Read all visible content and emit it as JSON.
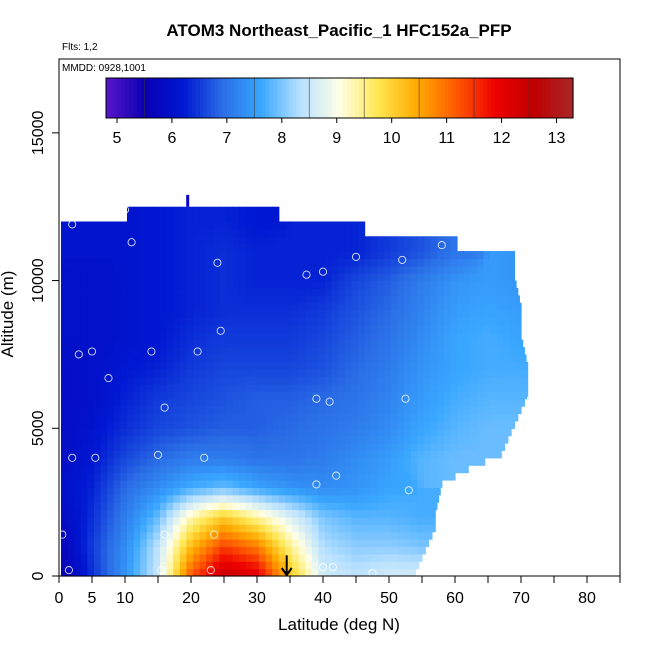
{
  "chart_data": {
    "type": "heatmap",
    "title": "ATOM3 Northeast_Pacific_1 HFC152a_PFP",
    "flights_label": "Flts: 1,2",
    "dates_label": "MMDD: 0928,1001",
    "xlabel": "Latitude (deg N)",
    "ylabel": "Altitude (m)",
    "xlim": [
      0,
      85
    ],
    "ylim": [
      0,
      17500
    ],
    "x_ticks": [
      0,
      5,
      10,
      20,
      30,
      40,
      50,
      60,
      70,
      80
    ],
    "x_minor_ticks": [
      15,
      25,
      35,
      45,
      55,
      65,
      75,
      85
    ],
    "y_ticks": [
      0,
      5000,
      10000,
      15000
    ],
    "colorbar": {
      "range": [
        4.8,
        13.3
      ],
      "ticks": [
        5,
        6,
        7,
        8,
        9,
        10,
        11,
        12,
        13
      ],
      "stops": [
        "#5a16c9",
        "#0a00b4",
        "#0018d2",
        "#2a6ee6",
        "#39a7ff",
        "#b9e1ff",
        "#ffffe6",
        "#ffe650",
        "#ffaa00",
        "#ff5a00",
        "#ee0000",
        "#c00000",
        "#a82828"
      ]
    },
    "field": {
      "lat_grid": [
        0,
        5,
        10,
        15,
        20,
        25,
        30,
        35,
        40,
        45,
        50,
        55,
        60,
        65,
        70,
        75
      ],
      "alt_grid": [
        0,
        1000,
        2000,
        3000,
        4000,
        5000,
        6000,
        7000,
        8000,
        9000,
        10000,
        11000,
        12000
      ],
      "values": [
        [
          5.4,
          6.4,
          7.4,
          8.5,
          11.2,
          12.5,
          12.1,
          10.2,
          8.6,
          8.4,
          8.6,
          8.6,
          null,
          null,
          null,
          null
        ],
        [
          5.6,
          6.5,
          7.3,
          8.4,
          10.3,
          11.4,
          10.9,
          9.5,
          8.3,
          8.1,
          8.1,
          8.0,
          null,
          null,
          null,
          null
        ],
        [
          5.8,
          6.4,
          7.1,
          7.9,
          9.3,
          10.1,
          9.4,
          8.7,
          8.0,
          7.8,
          7.8,
          7.7,
          null,
          null,
          null,
          null
        ],
        [
          6.0,
          6.3,
          6.9,
          7.3,
          7.7,
          7.9,
          7.6,
          7.4,
          7.3,
          7.4,
          7.6,
          null,
          null,
          null,
          null,
          null
        ],
        [
          5.9,
          6.2,
          6.6,
          6.9,
          7.1,
          7.1,
          7.0,
          7.0,
          7.1,
          7.3,
          7.5,
          7.8,
          7.9,
          7.9,
          null,
          null
        ],
        [
          5.9,
          6.1,
          6.4,
          6.6,
          6.7,
          6.8,
          6.8,
          6.9,
          7.0,
          7.1,
          7.3,
          7.6,
          7.8,
          7.9,
          7.9,
          null
        ],
        [
          5.9,
          6.0,
          6.3,
          6.5,
          6.6,
          6.7,
          6.8,
          6.8,
          6.9,
          7.0,
          7.2,
          7.5,
          7.7,
          7.8,
          7.8,
          null
        ],
        [
          5.9,
          6.0,
          6.2,
          6.3,
          6.5,
          6.6,
          6.6,
          6.6,
          6.7,
          6.9,
          7.1,
          7.4,
          7.6,
          7.7,
          7.7,
          null
        ],
        [
          6.0,
          6.0,
          6.1,
          6.2,
          6.4,
          6.5,
          6.5,
          6.5,
          6.6,
          6.8,
          7.0,
          7.3,
          7.6,
          7.7,
          7.6,
          null
        ],
        [
          6.0,
          6.0,
          6.1,
          6.2,
          6.3,
          6.4,
          6.4,
          6.4,
          6.5,
          6.7,
          6.9,
          7.2,
          7.5,
          7.6,
          7.5,
          null
        ],
        [
          6.0,
          6.0,
          6.1,
          6.2,
          6.3,
          6.4,
          6.3,
          6.3,
          6.3,
          6.6,
          6.8,
          7.1,
          7.4,
          7.5,
          7.4,
          null
        ],
        [
          6.1,
          6.1,
          6.1,
          6.2,
          6.3,
          6.4,
          6.3,
          6.3,
          6.3,
          6.3,
          6.5,
          6.7,
          7.0,
          null,
          null,
          null
        ],
        [
          null,
          null,
          6.1,
          6.2,
          6.3,
          6.3,
          6.2,
          null,
          null,
          null,
          null,
          null,
          null,
          null,
          null,
          null
        ]
      ],
      "profiles": [
        {
          "lat_start": 0,
          "lat_end": 6,
          "alt_max": 12000
        },
        {
          "lat_start": 6,
          "lat_end": 10,
          "alt_max": 12000
        },
        {
          "lat_start": 10,
          "lat_end": 25,
          "alt_max": 12500
        },
        {
          "lat_start": 25,
          "lat_end": 33,
          "alt_max": 12500
        },
        {
          "lat_start": 33,
          "lat_end": 46,
          "alt_max": 11900
        },
        {
          "lat_start": 46,
          "lat_end": 53,
          "alt_max": 11500
        },
        {
          "lat_start": 53,
          "lat_end": 60,
          "alt_max": 11500
        },
        {
          "lat_start": 60,
          "lat_end": 68,
          "alt_max": 10900
        },
        {
          "lat_start": 68,
          "lat_end": 71,
          "alt_max": 10900
        }
      ],
      "right_edge": [
        {
          "alt": 0,
          "lat": 54
        },
        {
          "alt": 1000,
          "lat": 56
        },
        {
          "alt": 1500,
          "lat": 57
        },
        {
          "alt": 2000,
          "lat": 57
        },
        {
          "alt": 3000,
          "lat": 58
        },
        {
          "alt": 3500,
          "lat": 62
        },
        {
          "alt": 4000,
          "lat": 67
        },
        {
          "alt": 5000,
          "lat": 69
        },
        {
          "alt": 6000,
          "lat": 71
        },
        {
          "alt": 7000,
          "lat": 71
        },
        {
          "alt": 8000,
          "lat": 70
        },
        {
          "alt": 9000,
          "lat": 70
        },
        {
          "alt": 10000,
          "lat": 69
        },
        {
          "alt": 11000,
          "lat": 69
        }
      ]
    },
    "samples": [
      {
        "lat": 1.5,
        "alt": 200
      },
      {
        "lat": 0.5,
        "alt": 1400
      },
      {
        "lat": 2,
        "alt": 4000
      },
      {
        "lat": 5.5,
        "alt": 4000
      },
      {
        "lat": 3,
        "alt": 7500
      },
      {
        "lat": 5,
        "alt": 7600
      },
      {
        "lat": 7.5,
        "alt": 6700
      },
      {
        "lat": 2,
        "alt": 11900
      },
      {
        "lat": 10,
        "alt": 12400
      },
      {
        "lat": 11,
        "alt": 11300
      },
      {
        "lat": 16,
        "alt": 5700
      },
      {
        "lat": 15,
        "alt": 4100
      },
      {
        "lat": 14,
        "alt": 7600
      },
      {
        "lat": 21,
        "alt": 7600
      },
      {
        "lat": 22,
        "alt": 4000
      },
      {
        "lat": 16,
        "alt": 1400
      },
      {
        "lat": 15.5,
        "alt": 200
      },
      {
        "lat": 23,
        "alt": 200
      },
      {
        "lat": 23.5,
        "alt": 1400
      },
      {
        "lat": 24,
        "alt": 10600
      },
      {
        "lat": 24.5,
        "alt": 8300
      },
      {
        "lat": 37.5,
        "alt": 10200
      },
      {
        "lat": 40,
        "alt": 10300
      },
      {
        "lat": 39,
        "alt": 6000
      },
      {
        "lat": 41,
        "alt": 5900
      },
      {
        "lat": 39,
        "alt": 3100
      },
      {
        "lat": 42,
        "alt": 3400
      },
      {
        "lat": 40,
        "alt": 300
      },
      {
        "lat": 41.5,
        "alt": 300
      },
      {
        "lat": 47.5,
        "alt": 100
      },
      {
        "lat": 45,
        "alt": 10800
      },
      {
        "lat": 52,
        "alt": 10700
      },
      {
        "lat": 58,
        "alt": 11200
      },
      {
        "lat": 70,
        "alt": 10900
      },
      {
        "lat": 52.5,
        "alt": 6000
      },
      {
        "lat": 53,
        "alt": 2900
      },
      {
        "lat": 71.5,
        "alt": 6000
      }
    ],
    "marker_arrow": {
      "lat": 34.5,
      "alt_top": 700,
      "alt_bottom": 0
    },
    "marker_top": {
      "lat": 19.5,
      "alt_bottom": 12500,
      "alt_top": 12900
    }
  }
}
